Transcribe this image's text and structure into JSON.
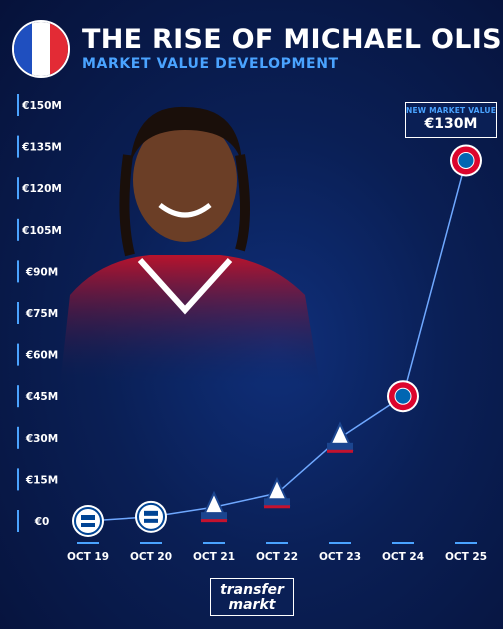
{
  "header": {
    "title": "THE RISE OF MICHAEL OLISE",
    "subtitle": "MARKET VALUE DEVELOPMENT"
  },
  "callout": {
    "label": "NEW MARKET VALUE",
    "value": "€130M"
  },
  "brand": {
    "line1": "transfer",
    "line2": "markt"
  },
  "colors": {
    "accent": "#4aa3ff",
    "line": "#6fa8ff",
    "flag_blue": "#1f4fbf",
    "flag_white": "#ffffff",
    "flag_red": "#e32b35",
    "bayern_red": "#dc052d",
    "palace_blue": "#1b458f",
    "reading_blue": "#004494"
  },
  "chart_data": {
    "type": "line",
    "x": [
      "OCT 19",
      "OCT 20",
      "OCT 21",
      "OCT 22",
      "OCT 23",
      "OCT 24",
      "OCT 25"
    ],
    "values": [
      0,
      1.5,
      5,
      10,
      30,
      45,
      130
    ],
    "clubs": [
      "Reading",
      "Reading",
      "Crystal Palace",
      "Crystal Palace",
      "Crystal Palace",
      "FC Bayern München",
      "FC Bayern München"
    ],
    "yticks": [
      "€0",
      "€15M",
      "€30M",
      "€45M",
      "€60M",
      "€75M",
      "€90M",
      "€105M",
      "€120M",
      "€135M",
      "€150M"
    ],
    "ylim": [
      0,
      150
    ],
    "grid": false
  }
}
